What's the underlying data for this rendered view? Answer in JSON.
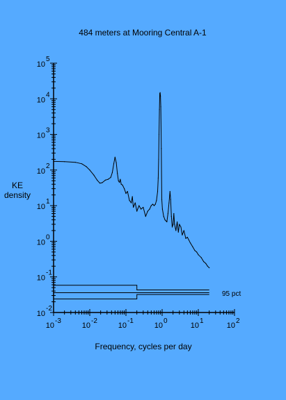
{
  "chart_data": {
    "type": "line",
    "title": "484 meters at Mooring Central A-1",
    "xlabel": "Frequency, cycles per day",
    "ylabel": [
      "KE",
      "density"
    ],
    "xscale": "log",
    "yscale": "log",
    "xlim": [
      0.001,
      100
    ],
    "ylim": [
      0.01,
      100000
    ],
    "x_ticks": [
      {
        "base": "10",
        "exp": "-3",
        "value": 0.001
      },
      {
        "base": "10",
        "exp": "-2",
        "value": 0.01
      },
      {
        "base": "10",
        "exp": "-1",
        "value": 0.1
      },
      {
        "base": "10",
        "exp": "0",
        "value": 1
      },
      {
        "base": "10",
        "exp": "1",
        "value": 10
      },
      {
        "base": "10",
        "exp": "2",
        "value": 100
      }
    ],
    "y_ticks": [
      {
        "base": "10",
        "exp": "-2",
        "value": 0.01
      },
      {
        "base": "10",
        "exp": "-1",
        "value": 0.1
      },
      {
        "base": "10",
        "exp": "0",
        "value": 1
      },
      {
        "base": "10",
        "exp": "1",
        "value": 10
      },
      {
        "base": "10",
        "exp": "2",
        "value": 100
      },
      {
        "base": "10",
        "exp": "3",
        "value": 1000
      },
      {
        "base": "10",
        "exp": "4",
        "value": 10000
      },
      {
        "base": "10",
        "exp": "5",
        "value": 100000
      }
    ],
    "series": [
      {
        "values": [
          [
            0.001,
            175
          ],
          [
            0.002,
            172
          ],
          [
            0.004,
            165
          ],
          [
            0.006,
            150
          ],
          [
            0.008,
            125
          ],
          [
            0.01,
            100
          ],
          [
            0.013,
            72
          ],
          [
            0.016,
            52
          ],
          [
            0.019,
            43
          ],
          [
            0.022,
            44
          ],
          [
            0.027,
            52
          ],
          [
            0.032,
            55
          ],
          [
            0.038,
            62
          ],
          [
            0.042,
            85
          ],
          [
            0.046,
            150
          ],
          [
            0.05,
            230
          ],
          [
            0.054,
            160
          ],
          [
            0.058,
            80
          ],
          [
            0.062,
            50
          ],
          [
            0.066,
            45
          ],
          [
            0.07,
            55
          ],
          [
            0.074,
            40
          ],
          [
            0.08,
            38
          ],
          [
            0.09,
            30
          ],
          [
            0.1,
            22
          ],
          [
            0.11,
            25
          ],
          [
            0.125,
            14
          ],
          [
            0.14,
            12
          ],
          [
            0.15,
            18
          ],
          [
            0.16,
            9
          ],
          [
            0.18,
            12
          ],
          [
            0.2,
            7
          ],
          [
            0.23,
            10
          ],
          [
            0.26,
            8
          ],
          [
            0.3,
            9
          ],
          [
            0.35,
            5
          ],
          [
            0.4,
            7
          ],
          [
            0.45,
            8
          ],
          [
            0.5,
            10
          ],
          [
            0.55,
            11
          ],
          [
            0.6,
            10
          ],
          [
            0.65,
            11
          ],
          [
            0.7,
            14
          ],
          [
            0.75,
            25
          ],
          [
            0.78,
            60
          ],
          [
            0.8,
            200
          ],
          [
            0.82,
            1000
          ],
          [
            0.84,
            5000
          ],
          [
            0.86,
            14000
          ],
          [
            0.88,
            15000
          ],
          [
            0.9,
            12000
          ],
          [
            0.92,
            6000
          ],
          [
            0.95,
            400
          ],
          [
            0.98,
            15
          ],
          [
            1.02,
            8
          ],
          [
            1.1,
            5
          ],
          [
            1.2,
            4
          ],
          [
            1.35,
            3.5
          ],
          [
            1.45,
            6
          ],
          [
            1.55,
            12
          ],
          [
            1.65,
            25
          ],
          [
            1.72,
            15
          ],
          [
            1.8,
            5
          ],
          [
            1.9,
            2.5
          ],
          [
            2.0,
            3
          ],
          [
            2.1,
            6
          ],
          [
            2.2,
            3
          ],
          [
            2.4,
            2
          ],
          [
            2.6,
            3.5
          ],
          [
            2.8,
            1.8
          ],
          [
            3.0,
            3
          ],
          [
            3.3,
            2.5
          ],
          [
            3.6,
            1.5
          ],
          [
            4.0,
            2
          ],
          [
            4.5,
            1.2
          ],
          [
            5.0,
            1.3
          ],
          [
            6.0,
            0.9
          ],
          [
            7.0,
            0.7
          ],
          [
            8.0,
            0.55
          ],
          [
            9.0,
            0.5
          ],
          [
            10.0,
            0.42
          ],
          [
            12.0,
            0.35
          ],
          [
            14.0,
            0.27
          ],
          [
            16.0,
            0.24
          ],
          [
            18.0,
            0.2
          ],
          [
            20.0,
            0.18
          ]
        ]
      }
    ],
    "confidence_interval": {
      "label": "95 pct",
      "x_start": 0.001,
      "x_break": 0.2,
      "x_end": 20,
      "lower": [
        0.024,
        0.032
      ],
      "middle": [
        0.036,
        0.036
      ],
      "upper": [
        0.058,
        0.043
      ]
    },
    "grid": false,
    "legend": "none"
  },
  "colors": {
    "background": "#55aaff",
    "ink": "#000000"
  }
}
